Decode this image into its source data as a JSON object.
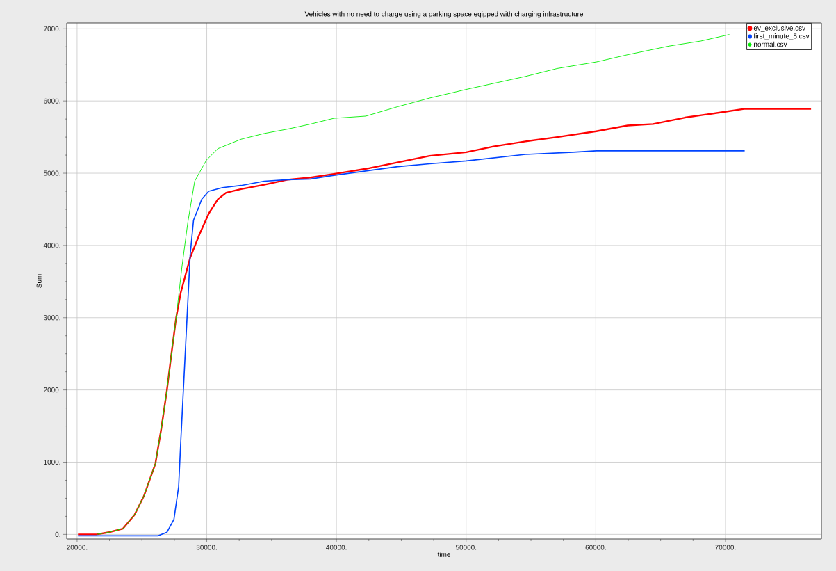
{
  "chart_data": {
    "type": "line",
    "title": "Vehicles with no need to charge using a parking space eqipped with charging infrastructure",
    "xlabel": "time",
    "ylabel": "Sum",
    "xlim": [
      19200,
      77400
    ],
    "ylim": [
      -64,
      7080
    ],
    "xticks": [
      {
        "value": 20000,
        "label": "20000."
      },
      {
        "value": 30000,
        "label": "30000."
      },
      {
        "value": 40000,
        "label": "40000."
      },
      {
        "value": 50000,
        "label": "50000."
      },
      {
        "value": 60000,
        "label": "60000."
      },
      {
        "value": 70000,
        "label": "70000."
      }
    ],
    "yticks": [
      {
        "value": 0,
        "label": "0."
      },
      {
        "value": 1000,
        "label": "1000."
      },
      {
        "value": 2000,
        "label": "2000."
      },
      {
        "value": 3000,
        "label": "3000."
      },
      {
        "value": 4000,
        "label": "4000."
      },
      {
        "value": 5000,
        "label": "5000."
      },
      {
        "value": 6000,
        "label": "6000."
      },
      {
        "value": 7000,
        "label": "7000."
      }
    ],
    "grid": true,
    "legend": "top right",
    "series": [
      {
        "name": "ev_exclusive.csv",
        "color": "#ff0000",
        "x": [
          20070,
          21500,
          22460,
          23540,
          24430,
          25150,
          26040,
          26490,
          26930,
          27290,
          27640,
          28000,
          28720,
          29430,
          30150,
          30860,
          31490,
          32650,
          34430,
          36220,
          38010,
          39800,
          42260,
          44720,
          47180,
          50010,
          52110,
          54570,
          57030,
          60040,
          62450,
          64420,
          66880,
          69960,
          71430,
          76600
        ],
        "values": [
          0,
          0,
          30,
          80,
          270,
          530,
          980,
          1460,
          2000,
          2520,
          3000,
          3350,
          3830,
          4150,
          4440,
          4640,
          4730,
          4780,
          4840,
          4910,
          4940,
          4990,
          5060,
          5150,
          5240,
          5290,
          5370,
          5440,
          5500,
          5580,
          5660,
          5680,
          5770,
          5850,
          5890,
          5890
        ]
      },
      {
        "name": "first_minute_5.csv",
        "color": "#0044ff",
        "x": [
          20070,
          26220,
          26930,
          27470,
          27830,
          28000,
          28180,
          28360,
          28540,
          28720,
          28980,
          29340,
          29610,
          30150,
          31220,
          32650,
          34430,
          36220,
          38010,
          39800,
          42260,
          44720,
          47180,
          50010,
          54570,
          58260,
          60040,
          64420,
          71480
        ],
        "values": [
          -20,
          -20,
          30,
          210,
          660,
          1300,
          1940,
          2580,
          3220,
          3870,
          4350,
          4510,
          4640,
          4750,
          4800,
          4830,
          4890,
          4910,
          4920,
          4970,
          5030,
          5090,
          5130,
          5170,
          5260,
          5290,
          5310,
          5310,
          5310
        ]
      },
      {
        "name": "normal.csv",
        "color": "#00ee00",
        "x": [
          21500,
          22460,
          23540,
          24430,
          25150,
          26040,
          26490,
          26930,
          27290,
          27640,
          28090,
          28540,
          29070,
          29970,
          30860,
          32650,
          34430,
          36220,
          38010,
          39800,
          42260,
          44720,
          47180,
          50010,
          54570,
          57030,
          60040,
          62450,
          65650,
          68110,
          70300
        ],
        "values": [
          0,
          30,
          80,
          270,
          530,
          980,
          1460,
          2000,
          2520,
          3000,
          3710,
          4320,
          4890,
          5180,
          5340,
          5470,
          5550,
          5610,
          5680,
          5760,
          5790,
          5920,
          6040,
          6160,
          6340,
          6450,
          6540,
          6640,
          6760,
          6830,
          6920
        ]
      }
    ]
  }
}
